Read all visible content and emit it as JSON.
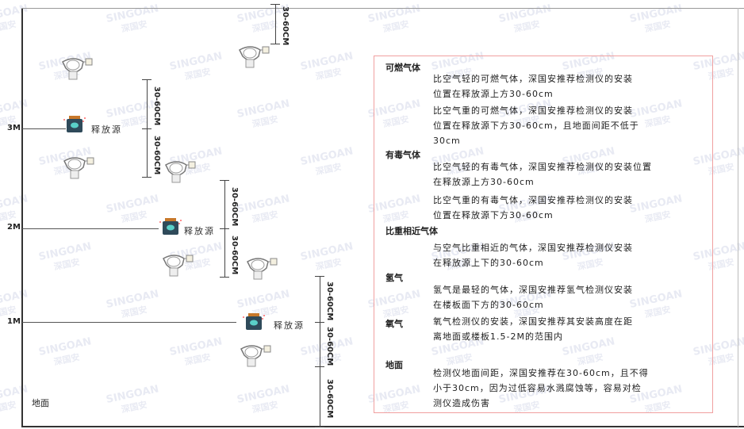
{
  "levels": {
    "m3": "3M",
    "m2": "2M",
    "m1": "1M",
    "ground": "地面"
  },
  "dimension_label": "30-60CM",
  "source_label": "释放源",
  "watermark": {
    "brand": "SINGOAN",
    "cn": "深国安"
  },
  "colors": {
    "panel_border": "#f0a0a0",
    "source_body": "#2f4a5a",
    "source_cap": "#c8782a",
    "source_face": "#5ad0c8"
  },
  "panel": {
    "combustible": {
      "title": "可燃气体",
      "lighter": [
        "比空气轻的可燃气体，深国安推荐检测仪的安装",
        "位置在释放源上方30-60cm"
      ],
      "heavier": [
        "比空气重的可燃气体，深国安推荐检测仪的安装",
        "位置在释放源下方30-60cm，且地面间距不低于",
        "30cm"
      ]
    },
    "toxic": {
      "title": "有毒气体",
      "lighter": [
        "比空气轻的有毒气体，深国安推荐检测仪的安装位置",
        "在释放源上方30-60cm"
      ],
      "heavier": [
        "比空气重的有毒气体，深国安推荐检测仪的安装",
        "位置在释放源下方30-60cm"
      ]
    },
    "similar": {
      "title": "比重相近气体",
      "text": [
        "与空气比重相近的气体，深国安推荐检测仪安装",
        "在释放源上下的30-60cm"
      ]
    },
    "hydrogen": {
      "title": "氢气",
      "text": [
        "氢气是最轻的气体，深国安推荐氢气检测仪安装",
        "在楼板面下方的30-60cm"
      ]
    },
    "oxygen": {
      "title": "氧气",
      "text": [
        "氧气检测仪的安装，深国安推荐其安装高度在距",
        "离地面或楼板1.5-2M的范围内"
      ]
    },
    "ground": {
      "title": "地面",
      "text": [
        "检测仪地面间距，深国安推荐在30-60cm，且不得",
        "小于30cm，因为过低容易水溅腐蚀等，容易对检",
        "测仪造成伤害"
      ]
    }
  }
}
